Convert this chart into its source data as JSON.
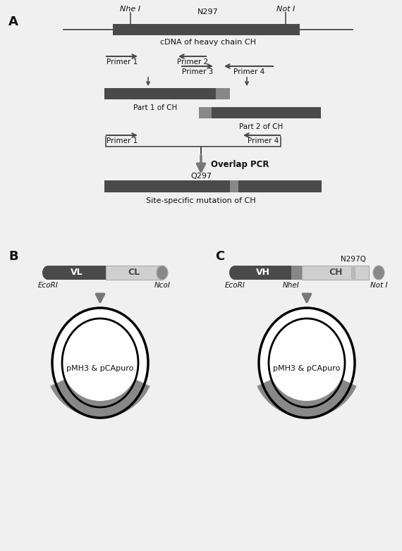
{
  "bg_color": "#f0f0f0",
  "dark_bar_color": "#4a4a4a",
  "medium_bar_color": "#888888",
  "light_bar_color": "#d0d0d0",
  "arrow_color": "#666666",
  "text_color": "#111111",
  "panel_A_label": "A",
  "panel_B_label": "B",
  "panel_C_label": "C",
  "nhe_label": "Nhe I",
  "not_label": "Not I",
  "n297_label": "N297",
  "cdna_label": "cDNA of heavy chain CH",
  "primer1_label": "Primer 1",
  "primer2_label": "Primer 2",
  "primer3_label": "Primer 3",
  "primer4_label": "Primer 4",
  "part1_label": "Part 1 of CH",
  "part2_label": "Part 2 of CH",
  "overlap_label": "Overlap PCR",
  "q297_label": "Q297",
  "mutation_label": "Site-specific mutation of CH",
  "ecori_b_label": "EcoRI",
  "ncoi_label": "NcoI",
  "vl_label": "VL",
  "cl_label": "CL",
  "ecori_c_label": "EcoRI",
  "nhei_label": "NheI",
  "not_c_label": "Not I",
  "vh_label": "VH",
  "ch_label": "CH",
  "n297q_label": "N297Q",
  "plasmid_label": "pMH3 & pCApuro"
}
